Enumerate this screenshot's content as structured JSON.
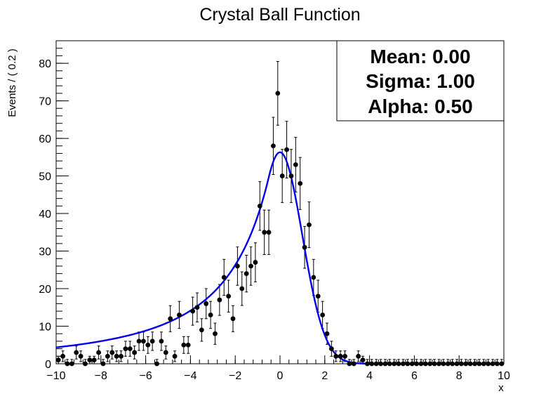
{
  "chart_data": {
    "type": "scatter",
    "title": "Crystal Ball Function",
    "xlabel": "x",
    "ylabel": "Events / ( 0.2 )",
    "xlim": [
      -10,
      10
    ],
    "ylim": [
      0,
      86
    ],
    "x_ticks": [
      -10,
      -8,
      -6,
      -4,
      -2,
      0,
      2,
      4,
      6,
      8,
      10
    ],
    "x_tick_labels": [
      "−10",
      "−8",
      "−6",
      "−4",
      "−2",
      "0",
      "2",
      "4",
      "6",
      "8",
      "10"
    ],
    "y_ticks": [
      0,
      10,
      20,
      30,
      40,
      50,
      60,
      70,
      80
    ],
    "y_tick_labels": [
      "0",
      "10",
      "20",
      "30",
      "40",
      "50",
      "60",
      "70",
      "80"
    ],
    "grid": false,
    "stats_box": {
      "position": "top-right",
      "lines": [
        "Mean: 0.00",
        "Sigma: 1.00",
        "Alpha: 0.50"
      ]
    },
    "series": [
      {
        "kind": "points_with_errors",
        "color": "#000000",
        "x": [
          -9.9,
          -9.7,
          -9.5,
          -9.3,
          -9.1,
          -8.9,
          -8.7,
          -8.5,
          -8.3,
          -8.1,
          -7.9,
          -7.7,
          -7.5,
          -7.3,
          -7.1,
          -6.9,
          -6.7,
          -6.5,
          -6.3,
          -6.1,
          -5.9,
          -5.7,
          -5.5,
          -5.3,
          -5.1,
          -4.9,
          -4.7,
          -4.5,
          -4.3,
          -4.1,
          -3.9,
          -3.7,
          -3.5,
          -3.3,
          -3.1,
          -2.9,
          -2.7,
          -2.5,
          -2.3,
          -2.1,
          -1.9,
          -1.7,
          -1.5,
          -1.3,
          -1.1,
          -0.9,
          -0.7,
          -0.5,
          -0.3,
          -0.1,
          0.1,
          0.3,
          0.5,
          0.7,
          0.9,
          1.1,
          1.3,
          1.5,
          1.7,
          1.9,
          2.1,
          2.3,
          2.5,
          2.7,
          2.9,
          3.1,
          3.3,
          3.5,
          3.7,
          3.9,
          4.1,
          4.3,
          4.5,
          4.7,
          4.9,
          5.1,
          5.3,
          5.5,
          5.7,
          5.9,
          6.1,
          6.3,
          6.5,
          6.7,
          6.9,
          7.1,
          7.3,
          7.5,
          7.7,
          7.9,
          8.1,
          8.3,
          8.5,
          8.7,
          8.9,
          9.1,
          9.3,
          9.5,
          9.7,
          9.9
        ],
        "y": [
          1,
          2,
          0,
          0,
          3,
          2,
          0,
          1,
          1,
          3,
          0,
          2,
          3,
          2,
          2,
          4,
          4,
          3,
          6,
          6,
          5,
          6,
          0,
          6,
          3,
          12,
          2,
          13,
          5,
          5,
          14,
          15,
          9,
          16,
          13,
          8,
          17,
          23,
          18,
          12,
          26,
          20,
          24,
          26,
          27,
          42,
          35,
          35,
          58,
          72,
          50,
          57,
          50,
          53,
          48,
          31,
          37,
          23,
          18,
          13,
          8,
          4,
          2,
          2,
          2,
          0,
          0,
          2,
          1,
          0,
          0,
          0,
          0,
          0,
          0,
          0,
          0,
          0,
          0,
          0,
          0,
          0,
          0,
          0,
          0,
          0,
          0,
          0,
          0,
          0,
          0,
          0,
          0,
          0,
          0,
          0,
          0,
          0,
          0,
          0
        ]
      },
      {
        "kind": "line",
        "color": "#0000ee",
        "model": "crystal_ball",
        "mean": 0.0,
        "sigma": 1.0,
        "alpha": 0.5,
        "n": 2,
        "peak": 56.3
      }
    ]
  }
}
